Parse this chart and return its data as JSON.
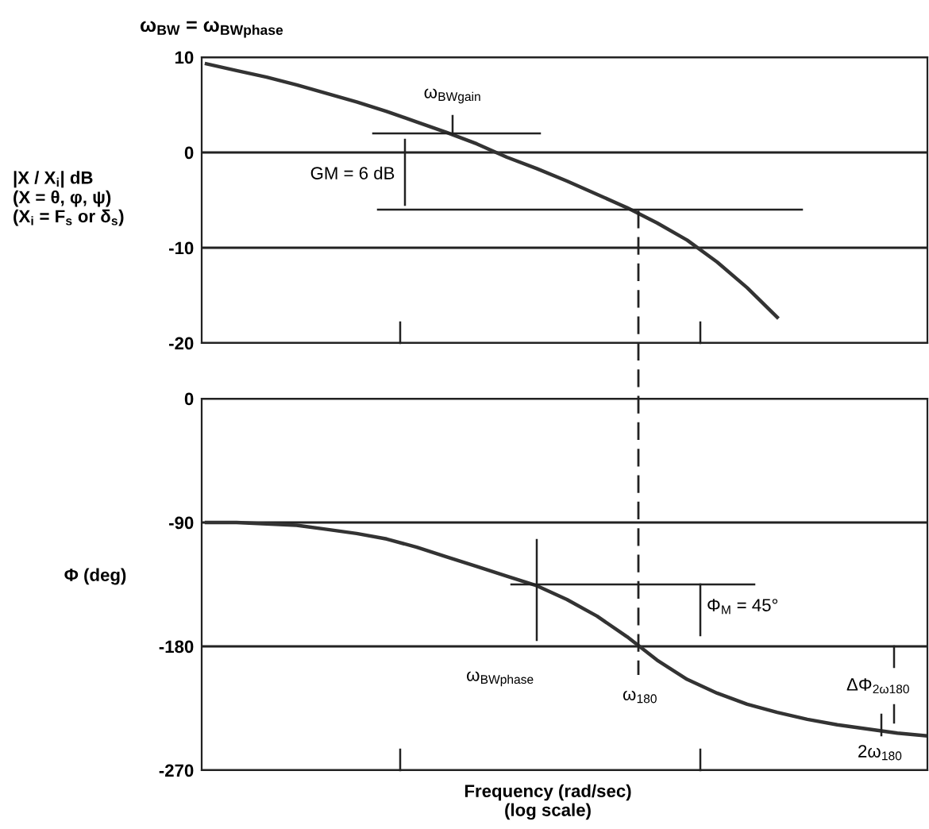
{
  "chart_data": [
    {
      "type": "line",
      "title": "ω$_{BW}$ = ω$_{BWphase}$",
      "ylabel": "|X / X$_{i}$| dB\n(X = θ, φ, ψ)\n(X$_{i}$ = F$_{s}$ or δ$_{s}$)",
      "categories": [
        null,
        null,
        null,
        null,
        null,
        null,
        null,
        null,
        null,
        null,
        null,
        null,
        null,
        null,
        null,
        null,
        null,
        null,
        null,
        null,
        null,
        null,
        null,
        null,
        null
      ],
      "values": [
        9.3,
        8.6,
        7.9,
        7.1,
        6.2,
        5.3,
        4.3,
        3.2,
        2.1,
        0.9,
        -0.5,
        -1.7,
        -3.0,
        -4.4,
        -5.8,
        -7.4,
        -9.2,
        -11.5,
        -14.2,
        -17.3,
        null,
        null,
        null,
        null,
        null
      ],
      "color": "#333333",
      "ylim": [
        -20,
        10
      ],
      "yticks": [
        10,
        0,
        -10,
        -20
      ],
      "grid": "y",
      "tick_labels": "y",
      "ref_lines": [
        {
          "axis": "y",
          "value": 2
        },
        {
          "axis": "y",
          "value": -6
        }
      ],
      "annotations": [
        "ω$_{BWgain}$",
        "GM = 6 dB"
      ]
    },
    {
      "type": "line",
      "ylabel": "Φ (deg)",
      "xlabel": "Frequency (rad/sec)\n(log scale)",
      "categories": [
        null,
        null,
        null,
        null,
        null,
        null,
        null,
        null,
        null,
        null,
        null,
        null,
        null,
        null,
        null,
        null,
        null,
        null,
        null,
        null,
        null,
        null,
        null,
        null,
        null
      ],
      "values": [
        -90,
        -90,
        -91,
        -92,
        -95,
        -98,
        -102,
        -108,
        -115,
        -122,
        -129,
        -136,
        -146,
        -158,
        -173,
        -190,
        -204,
        -214,
        -222,
        -228,
        -233,
        -237,
        -240,
        -243,
        -245
      ],
      "color": "#333333",
      "ylim": [
        -270,
        0
      ],
      "yticks": [
        0,
        -90,
        -180,
        -270
      ],
      "grid": "y",
      "tick_labels": "y",
      "ref_lines": [
        {
          "axis": "y",
          "value": -135
        }
      ],
      "annotations": [
        "Φ$_{M}$ = 45°",
        "ω$_{BWphase}$",
        "ω$_{180}$",
        "ΔΦ$_{2ω180}$",
        "2ω$_{180}$"
      ]
    }
  ]
}
